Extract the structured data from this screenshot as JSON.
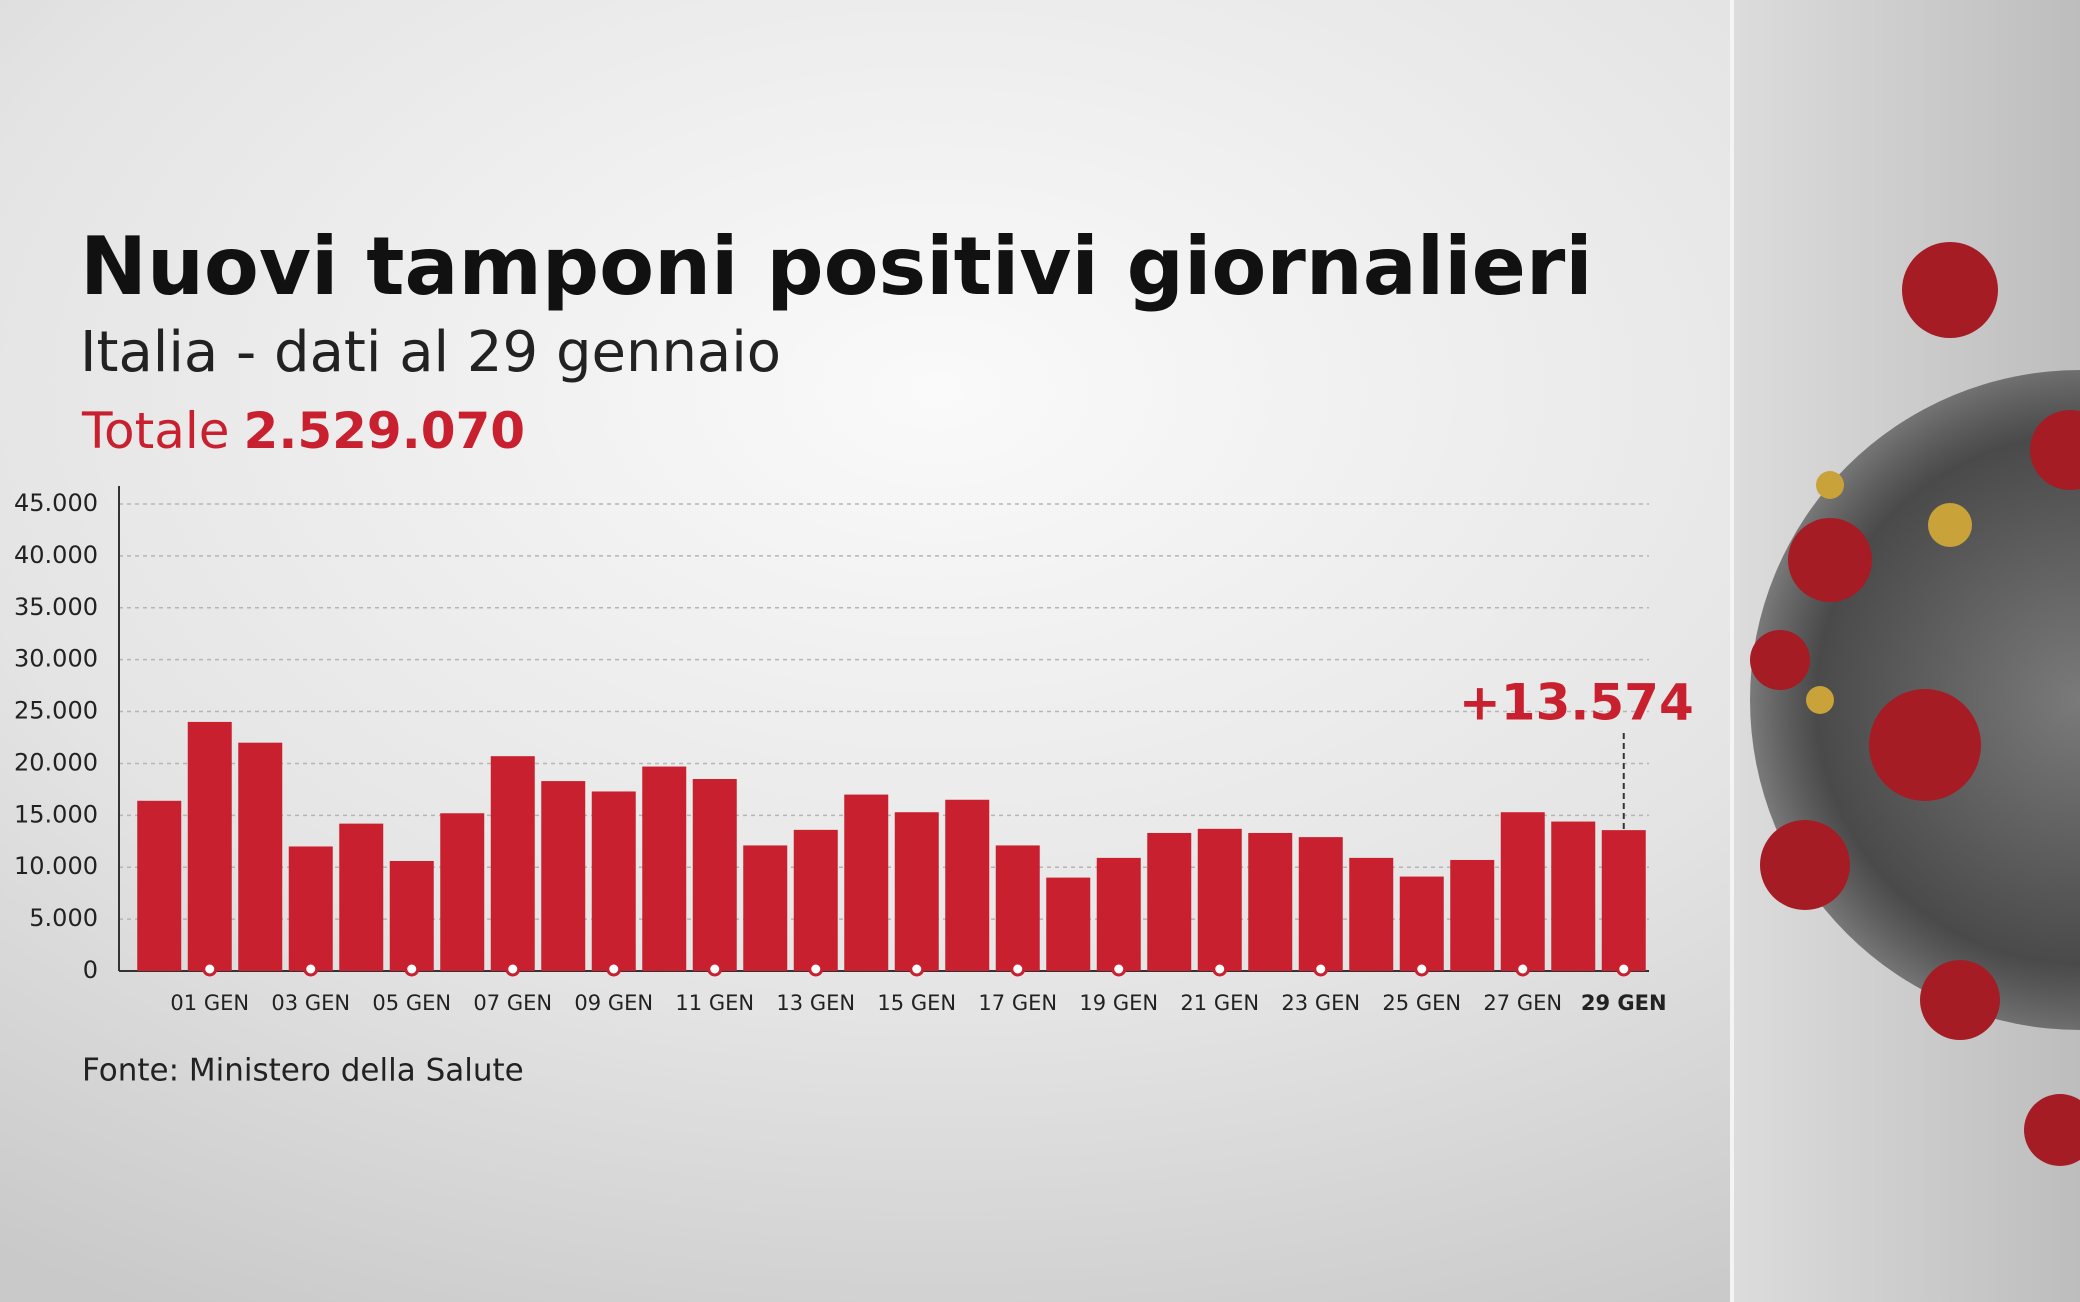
{
  "chart_data": {
    "type": "bar",
    "title": "Nuovi tamponi positivi giornalieri",
    "subtitle": "Italia - dati al 29 gennaio",
    "total_label": "Totale",
    "total_value": "2.529.070",
    "source": "Fonte: Ministero della Salute",
    "categories": [
      null,
      "01 GEN",
      null,
      "03 GEN",
      null,
      "05 GEN",
      null,
      "07 GEN",
      null,
      "09 GEN",
      null,
      "11 GEN",
      null,
      "13 GEN",
      null,
      "15 GEN",
      null,
      "17 GEN",
      null,
      "19 GEN",
      null,
      "21 GEN",
      null,
      "23 GEN",
      null,
      "25 GEN",
      null,
      "27 GEN",
      null,
      "29 GEN"
    ],
    "values": [
      16400,
      24000,
      22000,
      12000,
      14200,
      10600,
      15200,
      20700,
      18300,
      17300,
      19700,
      18500,
      12100,
      13600,
      17000,
      15300,
      16500,
      12100,
      9000,
      10900,
      13300,
      13700,
      13300,
      12900,
      10900,
      9100,
      10700,
      15300,
      14400,
      13574
    ],
    "value_labels": [
      null,
      null,
      null,
      null,
      null,
      null,
      null,
      null,
      null,
      null,
      null,
      null,
      null,
      null,
      null,
      null,
      null,
      null,
      null,
      null,
      null,
      null,
      null,
      null,
      null,
      null,
      null,
      null,
      null,
      "+13.574"
    ],
    "color": "#c8202e",
    "ylim": [
      0,
      45000
    ],
    "yticks": [
      0,
      {
        "value": 5000,
        "label": "5.000"
      },
      {
        "value": 10000,
        "label": "10.000"
      },
      {
        "value": 15000,
        "label": "15.000"
      },
      {
        "value": 20000,
        "label": "20.000"
      },
      {
        "value": 25000,
        "label": "25.000"
      },
      {
        "value": 30000,
        "label": "30.000"
      },
      {
        "value": 35000,
        "label": "35.000"
      },
      {
        "value": 40000,
        "label": "40.000"
      },
      {
        "value": 45000,
        "label": "45.000"
      }
    ],
    "grid": true
  }
}
